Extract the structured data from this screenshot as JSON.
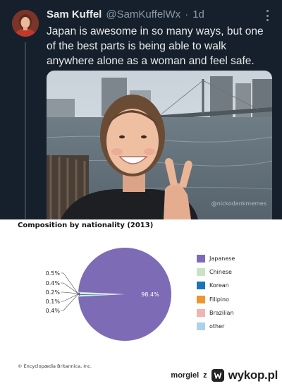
{
  "tweet": {
    "display_name": "Sam Kuffel",
    "handle": "@SamKuffelWx",
    "separator": "·",
    "age": "1d",
    "text": "Japan is awesome in so many ways, but one of the best parts is being able to walk anywhere alone as a woman and feel safe.",
    "photo_watermark": "@nickodankmemes",
    "more_icon": "more-vertical-icon",
    "colors": {
      "background": "#16202c",
      "text": "#e7e9ea",
      "muted": "#8b98a5"
    }
  },
  "chart": {
    "title": "Composition by nationality (2013)",
    "copyright": "© Encyclopædia Britannica, Inc."
  },
  "chart_data": {
    "type": "pie",
    "title": "Composition by nationality (2013)",
    "slices": [
      {
        "label": "Japanese",
        "value": 98.4,
        "color": "#7e6bb5"
      },
      {
        "label": "Chinese",
        "value": 0.5,
        "color": "#c9e4c3"
      },
      {
        "label": "Korean",
        "value": 0.4,
        "color": "#1b75b4"
      },
      {
        "label": "Filipino",
        "value": 0.2,
        "color": "#f0942e"
      },
      {
        "label": "Brazilian",
        "value": 0.1,
        "color": "#f1b4b0"
      },
      {
        "label": "other",
        "value": 0.4,
        "color": "#a9d3ea"
      }
    ],
    "outside_labels": [
      "0.5%",
      "0.4%",
      "0.2%",
      "0.1%",
      "0.4%"
    ],
    "inside_label": "98.4%",
    "legend_position": "right"
  },
  "footer": {
    "user": "morgiel",
    "separator": "z",
    "site": "wykop.pl",
    "logo_icon": "wykop-logo-icon"
  }
}
